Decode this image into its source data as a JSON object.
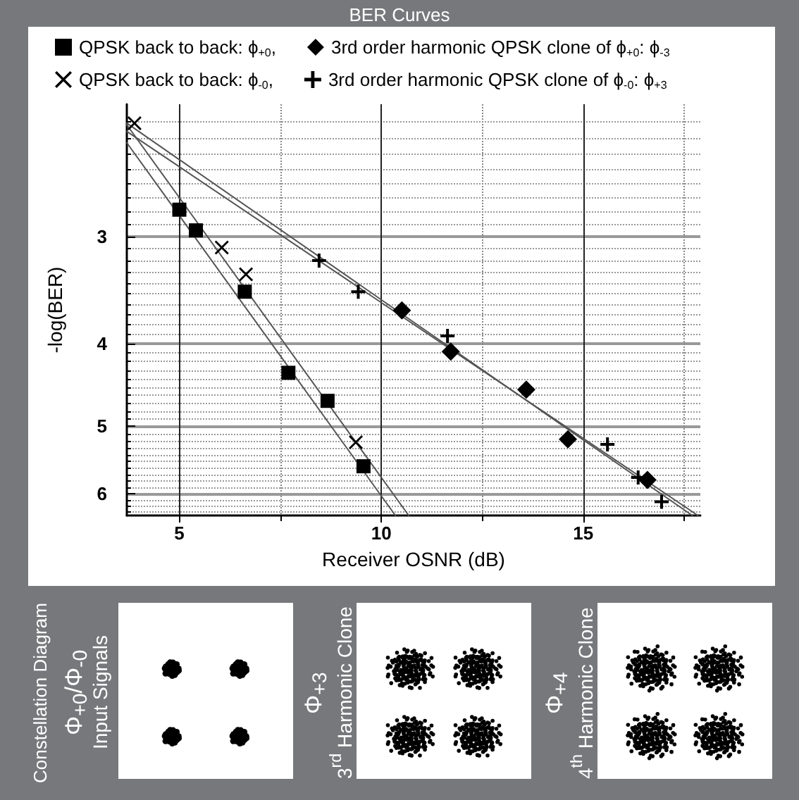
{
  "chart_data": {
    "type": "scatter",
    "title": "BER Curves",
    "xlabel": "Receiver OSNR (dB)",
    "ylabel": "-log(BER)",
    "xlim": [
      3.7,
      17.9
    ],
    "xticks": [
      5,
      {
        "value": 7.5,
        "label": null
      },
      10,
      {
        "value": 12.5,
        "label": null
      },
      15,
      {
        "value": 17.5,
        "label": null
      }
    ],
    "ylim": [
      6.36,
      2.1
    ],
    "yticks": [
      {
        "value": 2.2,
        "label": null
      },
      {
        "value": 2.3,
        "label": null
      },
      {
        "value": 2.4,
        "label": null
      },
      {
        "value": 2.5,
        "label": null
      },
      {
        "value": 2.6,
        "label": null
      },
      {
        "value": 2.7,
        "label": null
      },
      {
        "value": 2.8,
        "label": null
      },
      {
        "value": 2.9,
        "label": null
      },
      3,
      {
        "value": 3.1,
        "label": null
      },
      {
        "value": 3.2,
        "label": null
      },
      {
        "value": 3.3,
        "label": null
      },
      {
        "value": 3.4,
        "label": null
      },
      {
        "value": 3.5,
        "label": null
      },
      {
        "value": 3.6,
        "label": null
      },
      {
        "value": 3.7,
        "label": null
      },
      {
        "value": 3.8,
        "label": null
      },
      {
        "value": 3.9,
        "label": null
      },
      4,
      {
        "value": 4.1,
        "label": null
      },
      {
        "value": 4.2,
        "label": null
      },
      {
        "value": 4.3,
        "label": null
      },
      {
        "value": 4.4,
        "label": null
      },
      {
        "value": 4.5,
        "label": null
      },
      {
        "value": 4.6,
        "label": null
      },
      {
        "value": 4.7,
        "label": null
      },
      {
        "value": 4.8,
        "label": null
      },
      {
        "value": 4.9,
        "label": null
      },
      5,
      {
        "value": 5.1,
        "label": null
      },
      {
        "value": 5.2,
        "label": null
      },
      {
        "value": 5.3,
        "label": null
      },
      {
        "value": 5.4,
        "label": null
      },
      {
        "value": 5.5,
        "label": null
      },
      {
        "value": 5.6,
        "label": null
      },
      {
        "value": 5.7,
        "label": null
      },
      {
        "value": 5.8,
        "label": null
      },
      {
        "value": 5.9,
        "label": null
      },
      6,
      {
        "value": 6.1,
        "label": null
      },
      {
        "value": 6.2,
        "label": null
      },
      {
        "value": 6.3,
        "label": null
      }
    ],
    "log": "y",
    "grid": true,
    "legend": "top",
    "series": [
      {
        "name": "QPSK back to back: ϕ$_{+0}$,",
        "color": "#000000",
        "marker": "square",
        "x": [
          5.0,
          5.41,
          6.62,
          7.7,
          8.67,
          9.56
        ],
        "values": [
          2.79,
          2.95,
          3.48,
          4.33,
          4.67,
          5.57
        ]
      },
      {
        "name": "3rd order harmonic QPSK clone of ϕ$_{+0}$: ϕ$_{-3}$",
        "color": "#000000",
        "marker": "diamond",
        "x": [
          10.51,
          11.72,
          13.59,
          14.62,
          16.59
        ],
        "values": [
          3.66,
          4.09,
          4.53,
          5.18,
          5.78
        ]
      },
      {
        "name": "QPSK back to back: ϕ$_{-0}$,",
        "color": "#000000",
        "marker": "cross",
        "x": [
          3.89,
          6.05,
          6.65,
          9.37
        ],
        "values": [
          2.21,
          3.09,
          3.32,
          5.22
        ]
      },
      {
        "name": "3rd order harmonic QPSK clone of ϕ$_{-0}$: ϕ$_{+3}$",
        "color": "#000000",
        "marker": "plus",
        "x": [
          8.46,
          9.43,
          11.64,
          15.6,
          16.36,
          16.94
        ],
        "values": [
          3.2,
          3.48,
          3.92,
          5.25,
          5.74,
          6.13
        ]
      },
      {
        "type": "line",
        "color": "#555555",
        "marker": "none",
        "x": [
          3.7,
          10.35
        ],
        "values": [
          2.33,
          6.36
        ]
      },
      {
        "type": "line",
        "color": "#555555",
        "marker": "none",
        "x": [
          3.7,
          10.68
        ],
        "values": [
          2.22,
          6.36
        ]
      },
      {
        "type": "line",
        "color": "#555555",
        "marker": "none",
        "x": [
          3.7,
          17.7
        ],
        "values": [
          2.21,
          6.36
        ]
      },
      {
        "type": "line",
        "color": "#555555",
        "marker": "none",
        "x": [
          3.7,
          17.84
        ],
        "values": [
          2.26,
          6.36
        ]
      }
    ],
    "annotations": [
      "Constellation Diagram",
      "Φ$_{+0}$/Φ$_{-0}$",
      "Input Signals",
      "Φ$_{+3}$",
      "3$^{rd}$ Harmonic Clone",
      "Φ$_{+4}$",
      "4$^{th}$ Harmonic Clone"
    ]
  }
}
